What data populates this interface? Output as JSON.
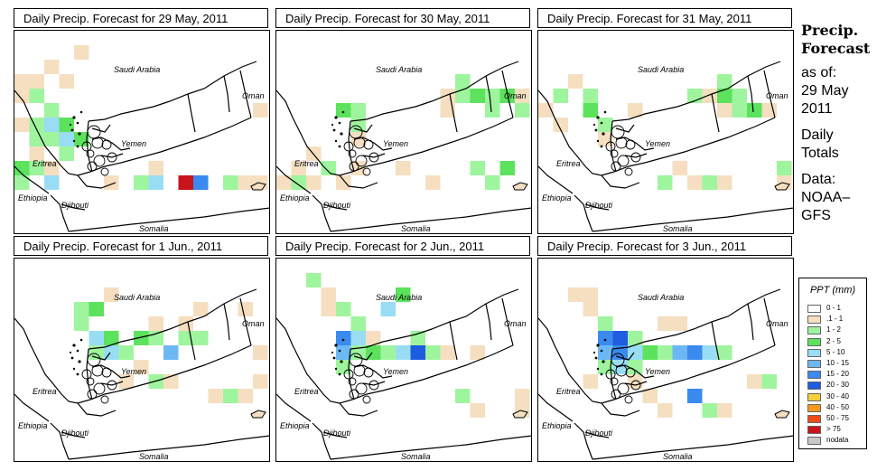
{
  "panels": [
    {
      "title": "Daily Precip. Forecast for  29 May, 2011"
    },
    {
      "title": "Daily Precip. Forecast for  30 May, 2011"
    },
    {
      "title": "Daily Precip. Forecast for  31 May, 2011"
    },
    {
      "title": "Daily Precip. Forecast for  1 Jun., 2011"
    },
    {
      "title": "Daily Precip. Forecast for  2 Jun., 2011"
    },
    {
      "title": "Daily Precip. Forecast for  3 Jun., 2011"
    }
  ],
  "map_labels": {
    "saudi_arabia": "Saudi Arabia",
    "oman": "Oman",
    "yemen": "Yemen",
    "eritrea": "Eritrea",
    "ethiopia": "Ethiopia",
    "djibouti": "Djibouti",
    "somalia": "Somalia"
  },
  "sidebar": {
    "title_line1": "Precip.",
    "title_line2": "Forecast",
    "asof_line1": "as of:",
    "asof_line2": "29 May",
    "asof_line3": "2011",
    "totals_line1": "Daily",
    "totals_line2": "Totals",
    "data_line1": "Data:",
    "data_line2": "NOAA–",
    "data_line3": "GFS"
  },
  "legend": {
    "title": "PPT (mm)",
    "items": [
      {
        "label": "0 - 1",
        "color": "#ffffff"
      },
      {
        "label": ".1 - 1",
        "color": "#f5dfc0"
      },
      {
        "label": "1 - 2",
        "color": "#9ef59e"
      },
      {
        "label": "2 - 5",
        "color": "#5ce25c"
      },
      {
        "label": "5 - 10",
        "color": "#99ddf5"
      },
      {
        "label": "10 - 15",
        "color": "#6cb8f5"
      },
      {
        "label": "15 - 20",
        "color": "#3a8af0"
      },
      {
        "label": "20 - 30",
        "color": "#1f5de0"
      },
      {
        "label": "30 - 40",
        "color": "#f5d23a"
      },
      {
        "label": "40 - 50",
        "color": "#f59a1f"
      },
      {
        "label": "50 - 75",
        "color": "#ef4a1a"
      },
      {
        "label": "> 75",
        "color": "#c8141c"
      },
      {
        "label": "nodata",
        "color": "#c8c8c8"
      }
    ]
  },
  "precip_cells": [
    [
      [
        0,
        3,
        "b"
      ],
      [
        0,
        4,
        "b"
      ],
      [
        1,
        3,
        "b"
      ],
      [
        1,
        4,
        "c"
      ],
      [
        0,
        6,
        "b"
      ],
      [
        1,
        6,
        "c"
      ],
      [
        1,
        7,
        "c"
      ],
      [
        1,
        8,
        "b"
      ],
      [
        2,
        5,
        "c"
      ],
      [
        2,
        6,
        "e"
      ],
      [
        2,
        7,
        "c"
      ],
      [
        3,
        6,
        "d"
      ],
      [
        3,
        7,
        "e"
      ],
      [
        4,
        7,
        "d"
      ],
      [
        3,
        8,
        "c"
      ],
      [
        2,
        9,
        "b"
      ],
      [
        0,
        9,
        "d"
      ],
      [
        1,
        9,
        "c"
      ],
      [
        0,
        10,
        "c"
      ],
      [
        2,
        10,
        "e"
      ],
      [
        8,
        10,
        "c"
      ],
      [
        9,
        10,
        "e"
      ],
      [
        6,
        10,
        "b"
      ],
      [
        9,
        9,
        "b"
      ],
      [
        2,
        2,
        "b"
      ],
      [
        4,
        1,
        "b"
      ],
      [
        3,
        3,
        "b"
      ],
      [
        16,
        5,
        "b"
      ],
      [
        11,
        10,
        "l"
      ],
      [
        12,
        10,
        "g"
      ],
      [
        14,
        10,
        "c"
      ],
      [
        15,
        10,
        "b"
      ],
      [
        16,
        10,
        "b"
      ]
    ],
    [
      [
        0,
        10,
        "b"
      ],
      [
        1,
        10,
        "c"
      ],
      [
        2,
        10,
        "b"
      ],
      [
        1,
        9,
        "b"
      ],
      [
        3,
        9,
        "c"
      ],
      [
        4,
        10,
        "b"
      ],
      [
        2,
        8,
        "b"
      ],
      [
        4,
        5,
        "d"
      ],
      [
        5,
        5,
        "c"
      ],
      [
        5,
        6,
        "c"
      ],
      [
        5,
        7,
        "b"
      ],
      [
        11,
        4,
        "b"
      ],
      [
        12,
        4,
        "c"
      ],
      [
        12,
        3,
        "c"
      ],
      [
        13,
        4,
        "d"
      ],
      [
        14,
        4,
        "c"
      ],
      [
        15,
        4,
        "d"
      ],
      [
        14,
        5,
        "c"
      ],
      [
        11,
        5,
        "b"
      ],
      [
        16,
        5,
        "c"
      ],
      [
        16,
        4,
        "b"
      ],
      [
        10,
        10,
        "b"
      ],
      [
        13,
        9,
        "c"
      ],
      [
        14,
        10,
        "c"
      ],
      [
        15,
        9,
        "d"
      ],
      [
        5,
        9,
        "b"
      ],
      [
        8,
        9,
        "b"
      ]
    ],
    [
      [
        0,
        5,
        "b"
      ],
      [
        1,
        4,
        "c"
      ],
      [
        1,
        6,
        "b"
      ],
      [
        2,
        3,
        "b"
      ],
      [
        3,
        4,
        "c"
      ],
      [
        3,
        5,
        "d"
      ],
      [
        4,
        6,
        "c"
      ],
      [
        4,
        7,
        "b"
      ],
      [
        6,
        5,
        "b"
      ],
      [
        10,
        4,
        "c"
      ],
      [
        11,
        4,
        "b"
      ],
      [
        12,
        3,
        "c"
      ],
      [
        12,
        4,
        "d"
      ],
      [
        13,
        4,
        "c"
      ],
      [
        14,
        5,
        "d"
      ],
      [
        12,
        5,
        "b"
      ],
      [
        13,
        5,
        "c"
      ],
      [
        15,
        5,
        "b"
      ],
      [
        16,
        9,
        "c"
      ],
      [
        16,
        10,
        "b"
      ],
      [
        8,
        10,
        "c"
      ],
      [
        9,
        9,
        "b"
      ],
      [
        10,
        10,
        "b"
      ],
      [
        11,
        10,
        "c"
      ],
      [
        12,
        10,
        "b"
      ]
    ],
    [
      [
        4,
        3,
        "c"
      ],
      [
        5,
        3,
        "d"
      ],
      [
        4,
        4,
        "c"
      ],
      [
        5,
        5,
        "e"
      ],
      [
        6,
        5,
        "d"
      ],
      [
        5,
        6,
        "c"
      ],
      [
        6,
        6,
        "e"
      ],
      [
        7,
        6,
        "c"
      ],
      [
        8,
        5,
        "d"
      ],
      [
        9,
        5,
        "c"
      ],
      [
        10,
        6,
        "f"
      ],
      [
        11,
        5,
        "c"
      ],
      [
        12,
        5,
        "c"
      ],
      [
        9,
        4,
        "b"
      ],
      [
        11,
        4,
        "b"
      ],
      [
        8,
        7,
        "b"
      ],
      [
        9,
        8,
        "c"
      ],
      [
        10,
        8,
        "b"
      ],
      [
        13,
        9,
        "b"
      ],
      [
        14,
        9,
        "c"
      ],
      [
        15,
        9,
        "b"
      ],
      [
        16,
        8,
        "b"
      ],
      [
        16,
        6,
        "b"
      ],
      [
        7,
        8,
        "b"
      ],
      [
        12,
        3,
        "b"
      ],
      [
        6,
        2,
        "b"
      ],
      [
        15,
        3,
        "b"
      ]
    ],
    [
      [
        2,
        1,
        "c"
      ],
      [
        3,
        2,
        "b"
      ],
      [
        4,
        3,
        "c"
      ],
      [
        3,
        3,
        "b"
      ],
      [
        4,
        5,
        "g"
      ],
      [
        5,
        5,
        "e"
      ],
      [
        4,
        6,
        "f"
      ],
      [
        5,
        6,
        "c"
      ],
      [
        6,
        6,
        "d"
      ],
      [
        7,
        6,
        "c"
      ],
      [
        8,
        6,
        "e"
      ],
      [
        9,
        6,
        "h"
      ],
      [
        9,
        5,
        "c"
      ],
      [
        10,
        6,
        "c"
      ],
      [
        11,
        6,
        "b"
      ],
      [
        6,
        5,
        "b"
      ],
      [
        5,
        4,
        "c"
      ],
      [
        4,
        7,
        "c"
      ],
      [
        13,
        6,
        "b"
      ],
      [
        16,
        9,
        "b"
      ],
      [
        16,
        10,
        "b"
      ],
      [
        12,
        9,
        "c"
      ],
      [
        13,
        10,
        "b"
      ],
      [
        8,
        2,
        "d"
      ],
      [
        7,
        3,
        "e"
      ]
    ],
    [
      [
        3,
        3,
        "b"
      ],
      [
        4,
        4,
        "c"
      ],
      [
        4,
        5,
        "g"
      ],
      [
        5,
        5,
        "h"
      ],
      [
        5,
        6,
        "g"
      ],
      [
        4,
        6,
        "f"
      ],
      [
        6,
        6,
        "e"
      ],
      [
        7,
        6,
        "d"
      ],
      [
        8,
        6,
        "c"
      ],
      [
        9,
        6,
        "f"
      ],
      [
        10,
        6,
        "g"
      ],
      [
        11,
        6,
        "e"
      ],
      [
        12,
        6,
        "c"
      ],
      [
        6,
        5,
        "c"
      ],
      [
        6,
        7,
        "c"
      ],
      [
        5,
        7,
        "e"
      ],
      [
        4,
        7,
        "c"
      ],
      [
        6,
        8,
        "b"
      ],
      [
        3,
        8,
        "b"
      ],
      [
        8,
        4,
        "b"
      ],
      [
        9,
        4,
        "b"
      ],
      [
        3,
        2,
        "b"
      ],
      [
        2,
        2,
        "b"
      ],
      [
        7,
        9,
        "b"
      ],
      [
        8,
        10,
        "b"
      ],
      [
        10,
        9,
        "g"
      ],
      [
        11,
        10,
        "c"
      ],
      [
        12,
        10,
        "b"
      ],
      [
        14,
        8,
        "b"
      ],
      [
        15,
        8,
        "c"
      ]
    ]
  ]
}
